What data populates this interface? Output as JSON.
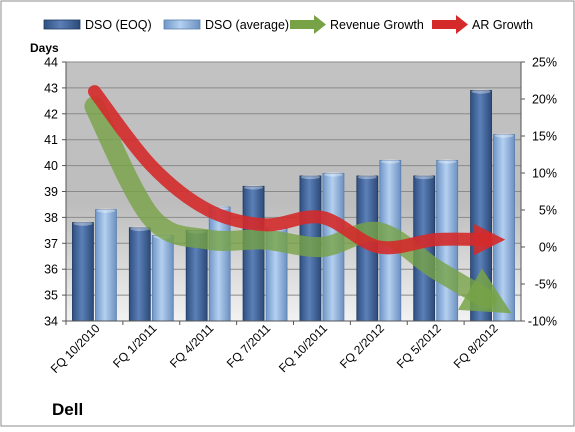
{
  "chart_data": {
    "type": "bar",
    "title": "",
    "company_label": "Dell",
    "y_axis_label": "Days",
    "categories": [
      "FQ 10/2010",
      "FQ 1/2011",
      "FQ 4/2011",
      "FQ 7/2011",
      "FQ 10/2011",
      "FQ 2/2012",
      "FQ 5/2012",
      "FQ 8/2012"
    ],
    "series": [
      {
        "name": "DSO (EOQ)",
        "type": "bar",
        "axis": "left",
        "color": "#4a6fa5",
        "values": [
          37.8,
          37.6,
          37.5,
          39.2,
          39.6,
          39.6,
          39.6,
          42.9
        ]
      },
      {
        "name": "DSO (average)",
        "type": "bar",
        "axis": "left",
        "color": "#8fb4e3",
        "values": [
          38.3,
          37.3,
          38.4,
          37.6,
          39.7,
          40.2,
          40.2,
          41.2
        ]
      },
      {
        "name": "Revenue Growth",
        "type": "line",
        "axis": "right",
        "color": "#77a346",
        "values": [
          19,
          4,
          1,
          1,
          0,
          2,
          -3,
          -7
        ]
      },
      {
        "name": "AR Growth",
        "type": "line",
        "axis": "right",
        "color": "#d42a2a",
        "values": [
          21,
          11,
          5,
          3,
          4,
          0,
          1,
          1
        ]
      }
    ],
    "left_axis": {
      "min": 34,
      "max": 44,
      "step": 1,
      "tick_labels": [
        "34",
        "35",
        "36",
        "37",
        "38",
        "39",
        "40",
        "41",
        "42",
        "43",
        "44"
      ]
    },
    "right_axis": {
      "min": -10,
      "max": 25,
      "step": 5,
      "tick_labels": [
        "-10%",
        "-5%",
        "0%",
        "5%",
        "10%",
        "15%",
        "20%",
        "25%"
      ]
    },
    "legend_position": "top",
    "grid": true
  }
}
